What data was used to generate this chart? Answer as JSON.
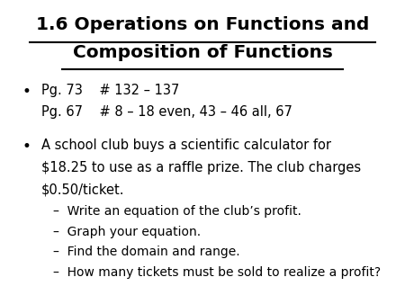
{
  "title_line1": "1.6 Operations on Functions and",
  "title_line2": "Composition of Functions",
  "title_fontsize": 14.5,
  "title_fontweight": "bold",
  "title_color": "#000000",
  "background_color": "#ffffff",
  "bullet1_line1": "Pg. 73    # 132 – 137",
  "bullet1_line2": "Pg. 67    # 8 – 18 even, 43 – 46 all, 67",
  "bullet2_line1": "A school club buys a scientific calculator for",
  "bullet2_line2": "$18.25 to use as a raffle prize. The club charges",
  "bullet2_line3": "$0.50/ticket.",
  "sub_bullet1": "–  Write an equation of the club’s profit.",
  "sub_bullet2": "–  Graph your equation.",
  "sub_bullet3": "–  Find the domain and range.",
  "sub_bullet4": "–  How many tickets must be sold to realize a profit?",
  "body_fontsize": 10.5,
  "sub_fontsize": 10.0,
  "bullet_fontsize": 12
}
